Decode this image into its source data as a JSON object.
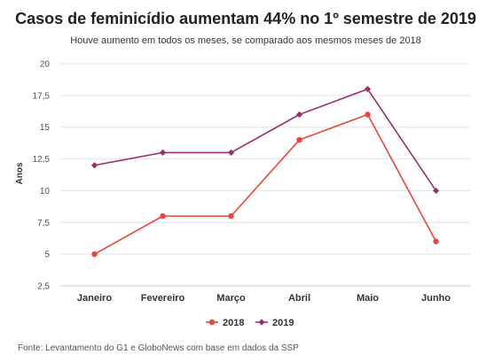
{
  "chart_data": {
    "type": "line",
    "title": "Casos de feminicídio aumentam 44% no 1º semestre de 2019",
    "subtitle": "Houve aumento em todos os meses, se comparado aos mesmos meses de 2018",
    "xlabel": "",
    "ylabel": "Anos",
    "categories": [
      "Janeiro",
      "Fevereiro",
      "Março",
      "Abril",
      "Maio",
      "Junho"
    ],
    "ylim": [
      2.5,
      20
    ],
    "yticks": [
      2.5,
      5,
      7.5,
      10,
      12.5,
      15,
      17.5,
      20
    ],
    "ytick_labels": [
      "2,5",
      "5",
      "7,5",
      "10",
      "12,5",
      "15",
      "17,5",
      "20"
    ],
    "grid": true,
    "legend_position": "bottom",
    "series": [
      {
        "name": "2018",
        "values": [
          5,
          8,
          8,
          14,
          16,
          6
        ],
        "color": "#e8463a",
        "marker": "circle"
      },
      {
        "name": "2019",
        "values": [
          12,
          13,
          13,
          16,
          18,
          10
        ],
        "color": "#9b2d6e",
        "marker": "diamond"
      }
    ]
  },
  "source": "Fonte: Levantamento do G1 e GloboNews com base em dados da SSP"
}
